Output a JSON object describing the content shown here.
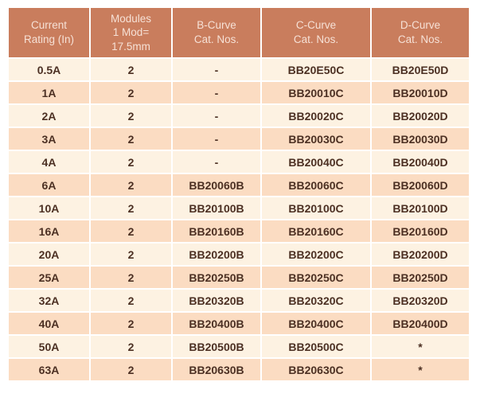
{
  "table": {
    "title": "MCB catalog numbers table",
    "columns": [
      {
        "key": "rating",
        "label": "Current\nRating (In)"
      },
      {
        "key": "modules",
        "label": "Modules\n1 Mod=\n17.5mm"
      },
      {
        "key": "b_curve",
        "label": "B-Curve\nCat. Nos."
      },
      {
        "key": "c_curve",
        "label": "C-Curve\nCat. Nos."
      },
      {
        "key": "d_curve",
        "label": "D-Curve\nCat. Nos."
      }
    ],
    "rows": [
      {
        "rating": "0.5A",
        "modules": "2",
        "b_curve": "-",
        "c_curve": "BB20E50C",
        "d_curve": "BB20E50D"
      },
      {
        "rating": "1A",
        "modules": "2",
        "b_curve": "-",
        "c_curve": "BB20010C",
        "d_curve": "BB20010D"
      },
      {
        "rating": "2A",
        "modules": "2",
        "b_curve": "-",
        "c_curve": "BB20020C",
        "d_curve": "BB20020D"
      },
      {
        "rating": "3A",
        "modules": "2",
        "b_curve": "-",
        "c_curve": "BB20030C",
        "d_curve": "BB20030D"
      },
      {
        "rating": "4A",
        "modules": "2",
        "b_curve": "-",
        "c_curve": "BB20040C",
        "d_curve": "BB20040D"
      },
      {
        "rating": "6A",
        "modules": "2",
        "b_curve": "BB20060B",
        "c_curve": "BB20060C",
        "d_curve": "BB20060D"
      },
      {
        "rating": "10A",
        "modules": "2",
        "b_curve": "BB20100B",
        "c_curve": "BB20100C",
        "d_curve": "BB20100D"
      },
      {
        "rating": "16A",
        "modules": "2",
        "b_curve": "BB20160B",
        "c_curve": "BB20160C",
        "d_curve": "BB20160D"
      },
      {
        "rating": "20A",
        "modules": "2",
        "b_curve": "BB20200B",
        "c_curve": "BB20200C",
        "d_curve": "BB20200D"
      },
      {
        "rating": "25A",
        "modules": "2",
        "b_curve": "BB20250B",
        "c_curve": "BB20250C",
        "d_curve": "BB20250D"
      },
      {
        "rating": "32A",
        "modules": "2",
        "b_curve": "BB20320B",
        "c_curve": "BB20320C",
        "d_curve": "BB20320D"
      },
      {
        "rating": "40A",
        "modules": "2",
        "b_curve": "BB20400B",
        "c_curve": "BB20400C",
        "d_curve": "BB20400D"
      },
      {
        "rating": "50A",
        "modules": "2",
        "b_curve": "BB20500B",
        "c_curve": "BB20500C",
        "d_curve": "*"
      },
      {
        "rating": "63A",
        "modules": "2",
        "b_curve": "BB20630B",
        "c_curve": "BB20630C",
        "d_curve": "*"
      }
    ]
  },
  "colors": {
    "header_bg": "#c97d5d",
    "header_text": "#f6e1d6",
    "row_odd_bg": "#fdf2e2",
    "row_even_bg": "#fbdcc2",
    "cell_text": "#4c3023",
    "page_bg": "#ffffff"
  }
}
